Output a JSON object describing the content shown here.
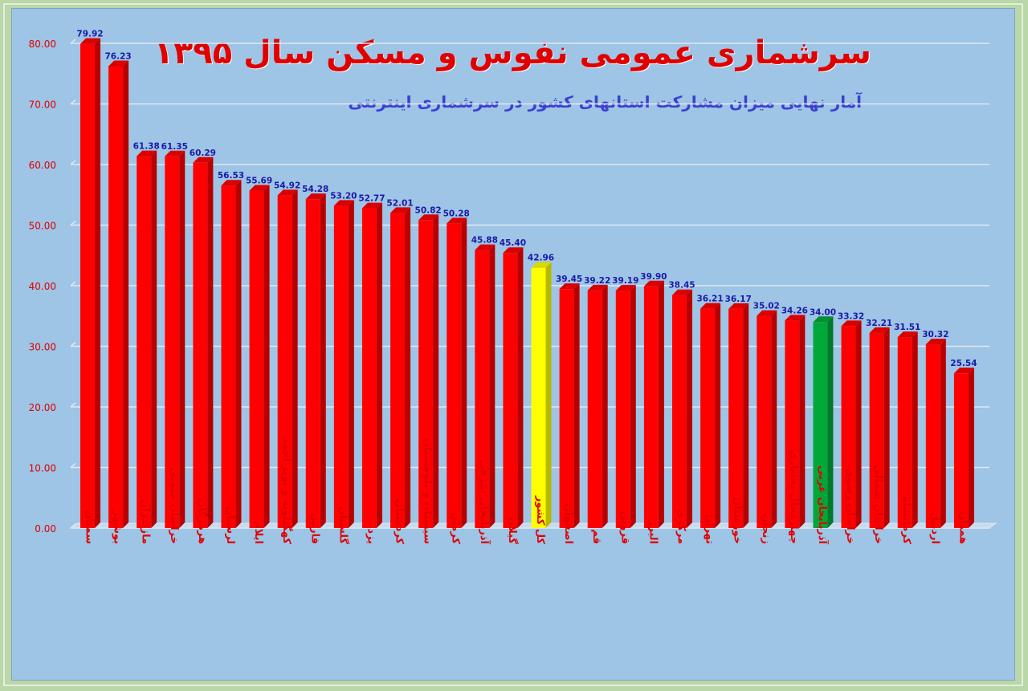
{
  "chart_data": {
    "type": "bar",
    "title": "سرشماری عمومی نفوس و مسکن سال ۱۳۹۵",
    "subtitle": "آمار نهایی میزان مشارکت استانهای کشور در سرشماری اینترنتی",
    "ylim": [
      0,
      80
    ],
    "yticks": [
      "0.00",
      "10.00",
      "20.00",
      "30.00",
      "40.00",
      "50.00",
      "60.00",
      "70.00",
      "80.00"
    ],
    "grid": true,
    "categories": [
      "سمنان",
      "بوشهر",
      "مازندران",
      "خراسان جنوبی",
      "هرمزگان",
      "لرستان",
      "ایلام",
      "کهگیلویه و بویر احمد",
      "فارس",
      "گلستان",
      "یزد",
      "کردستان",
      "سیستان و بلوچستان",
      "کرمان",
      "آذربایجان شرقی",
      "گیلان",
      "کل کشور",
      "اصفهان",
      "قم",
      "قزوین",
      "البرز",
      "مرکزی",
      "تهران",
      "خوزستان",
      "زنجان",
      "چهارمحال بختیاری",
      "آذربایجان غربی",
      "خراسان رضوی",
      "خراسان شمالی",
      "کرمانشاه",
      "اردبیل",
      "همدان"
    ],
    "values": [
      79.92,
      76.23,
      61.38,
      61.35,
      60.29,
      56.53,
      55.69,
      54.92,
      54.28,
      53.2,
      52.77,
      52.01,
      50.82,
      50.28,
      45.88,
      45.4,
      42.96,
      39.45,
      39.22,
      39.19,
      39.9,
      38.45,
      36.21,
      36.17,
      35.02,
      34.26,
      34.0,
      33.32,
      32.21,
      31.51,
      30.32,
      25.54
    ],
    "value_labels": [
      "79.92",
      "76.23",
      "61.38",
      "61.35",
      "60.29",
      "56.53",
      "55.69",
      "54.92",
      "54.28",
      "53.20",
      "52.77",
      "52.01",
      "50.82",
      "50.28",
      "45.88",
      "45.40",
      "42.96",
      "39.45",
      "39.22",
      "39.19",
      "39.90",
      "38.45",
      "36.21",
      "36.17",
      "35.02",
      "34.26",
      "34.00",
      "33.32",
      "32.21",
      "31.51",
      "30.32",
      "25.54"
    ],
    "colors": {
      "default": "#ff0000",
      "highlights": {
        "16": "#ffff00",
        "26": "#00a83a"
      },
      "value_label": "#1a1aa6",
      "tick_label": "#e00000",
      "category_label": "#e00000",
      "grid": "#dfe9f3"
    }
  }
}
